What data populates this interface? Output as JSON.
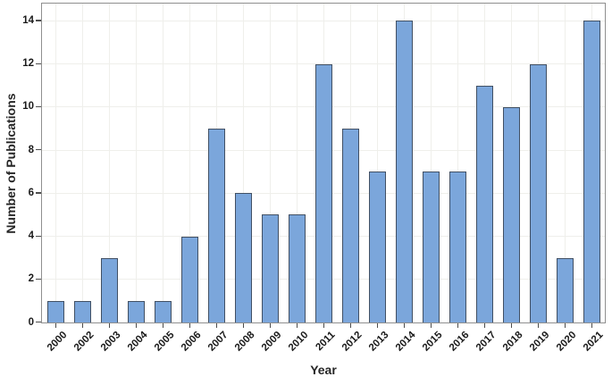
{
  "chart_data": {
    "type": "bar",
    "title": "",
    "xlabel": "Year",
    "ylabel": "Number of Publications",
    "categories": [
      "2000",
      "2002",
      "2003",
      "2004",
      "2005",
      "2006",
      "2007",
      "2008",
      "2009",
      "2010",
      "2011",
      "2012",
      "2013",
      "2014",
      "2015",
      "2016",
      "2017",
      "2018",
      "2019",
      "2020",
      "2021"
    ],
    "values": [
      1,
      1,
      3,
      1,
      1,
      4,
      9,
      6,
      5,
      5,
      12,
      9,
      7,
      14,
      7,
      7,
      11,
      10,
      12,
      3,
      14
    ],
    "y_ticks": [
      0,
      2,
      4,
      6,
      8,
      10,
      12,
      14
    ],
    "ylim": [
      0,
      14.8
    ],
    "grid": true,
    "legend": "none",
    "colors": {
      "bar_fill": "#7BA6DB",
      "bar_border": "#415064",
      "grid": "#EFEFEB",
      "plot_border": "#8F8F8F",
      "tick": "#4D4D4D",
      "text": "#262626"
    }
  }
}
